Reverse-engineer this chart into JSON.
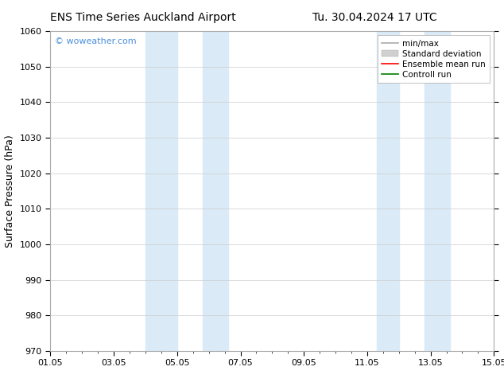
{
  "title_left": "ENS Time Series Auckland Airport",
  "title_right": "Tu. 30.04.2024 17 UTC",
  "ylabel": "Surface Pressure (hPa)",
  "ylim": [
    970,
    1060
  ],
  "yticks": [
    970,
    980,
    990,
    1000,
    1010,
    1020,
    1030,
    1040,
    1050,
    1060
  ],
  "xticks_labels": [
    "01.05",
    "03.05",
    "05.05",
    "07.05",
    "09.05",
    "11.05",
    "13.05",
    "15.05"
  ],
  "xticks_values": [
    0,
    2,
    4,
    6,
    8,
    10,
    12,
    14
  ],
  "xlim": [
    0,
    14
  ],
  "shaded_bands": [
    {
      "x_start": 3.0,
      "x_end": 4.0
    },
    {
      "x_start": 4.8,
      "x_end": 5.6
    },
    {
      "x_start": 10.3,
      "x_end": 11.0
    },
    {
      "x_start": 11.8,
      "x_end": 12.6
    }
  ],
  "shaded_color": "#daeaf7",
  "watermark_text": "© woweather.com",
  "watermark_color": "#4a90d9",
  "bg_color": "#ffffff",
  "plot_bg_color": "#ffffff",
  "grid_color": "#cccccc",
  "title_fontsize": 10,
  "tick_fontsize": 8,
  "label_fontsize": 9,
  "legend_fontsize": 7.5
}
